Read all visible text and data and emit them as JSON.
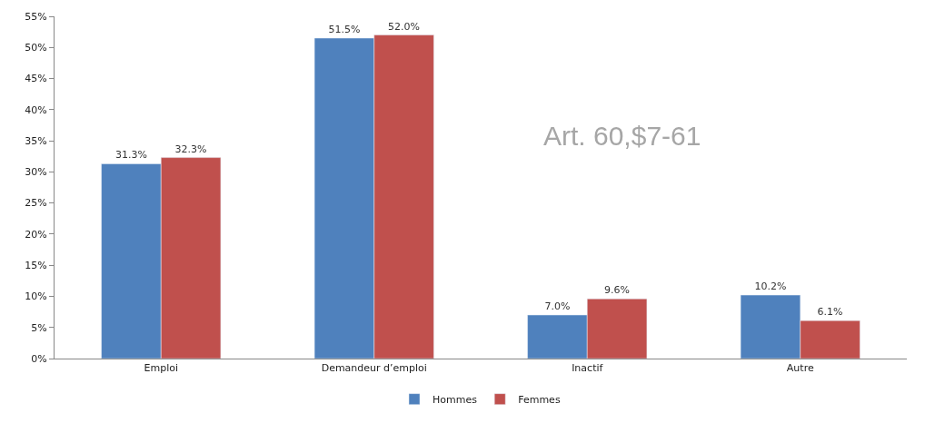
{
  "chart_data": {
    "type": "bar",
    "categories": [
      "Emploi",
      "Demandeur d’emploi",
      "Inactif",
      "Autre"
    ],
    "series": [
      {
        "name": "Hommes",
        "color": "#4f81bd",
        "values": [
          31.3,
          51.5,
          7.0,
          10.2
        ],
        "value_labels": [
          "31.3%",
          "51.5%",
          "7.0%",
          "10.2%"
        ]
      },
      {
        "name": "Femmes",
        "color": "#c0504d",
        "values": [
          32.3,
          52.0,
          9.6,
          6.1
        ],
        "value_labels": [
          "32.3%",
          "52.0%",
          "9.6%",
          "6.1%"
        ]
      }
    ],
    "ylim": [
      0,
      55
    ],
    "yticks": [
      {
        "value": 0,
        "label": "0%"
      },
      {
        "value": 5,
        "label": "5%"
      },
      {
        "value": 10,
        "label": "10%"
      },
      {
        "value": 15,
        "label": "15%"
      },
      {
        "value": 20,
        "label": "20%"
      },
      {
        "value": 25,
        "label": "25%"
      },
      {
        "value": 30,
        "label": "30%"
      },
      {
        "value": 35,
        "label": "35%"
      },
      {
        "value": 40,
        "label": "40%"
      },
      {
        "value": 45,
        "label": "45%"
      },
      {
        "value": 50,
        "label": "50%"
      },
      {
        "value": 55,
        "label": "55%"
      }
    ],
    "annotations": [
      {
        "text": "Art. 60,$7-61"
      }
    ],
    "legend": "bottom"
  }
}
